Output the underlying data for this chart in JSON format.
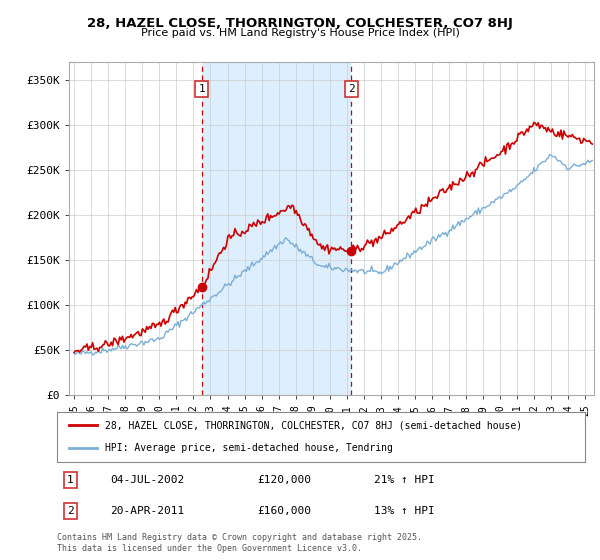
{
  "title": "28, HAZEL CLOSE, THORRINGTON, COLCHESTER, CO7 8HJ",
  "subtitle": "Price paid vs. HM Land Registry's House Price Index (HPI)",
  "ylabel_ticks": [
    "£0",
    "£50K",
    "£100K",
    "£150K",
    "£200K",
    "£250K",
    "£300K",
    "£350K"
  ],
  "ytick_vals": [
    0,
    50000,
    100000,
    150000,
    200000,
    250000,
    300000,
    350000
  ],
  "ylim": [
    0,
    370000
  ],
  "xlim_start": 1994.7,
  "xlim_end": 2025.5,
  "marker1_x": 2002.5,
  "marker1_y": 120000,
  "marker2_x": 2011.25,
  "marker2_y": 160000,
  "marker1_date": "04-JUL-2002",
  "marker1_price": "£120,000",
  "marker1_hpi": "21% ↑ HPI",
  "marker2_date": "20-APR-2011",
  "marker2_price": "£160,000",
  "marker2_hpi": "13% ↑ HPI",
  "legend_line1": "28, HAZEL CLOSE, THORRINGTON, COLCHESTER, CO7 8HJ (semi-detached house)",
  "legend_line2": "HPI: Average price, semi-detached house, Tendring",
  "footer": "Contains HM Land Registry data © Crown copyright and database right 2025.\nThis data is licensed under the Open Government Licence v3.0.",
  "price_color": "#cc0000",
  "hpi_color": "#7bafd4",
  "shade_color": "#ddeeff",
  "plot_bg": "#ffffff",
  "grid_color": "#cccccc",
  "shade_between": true
}
